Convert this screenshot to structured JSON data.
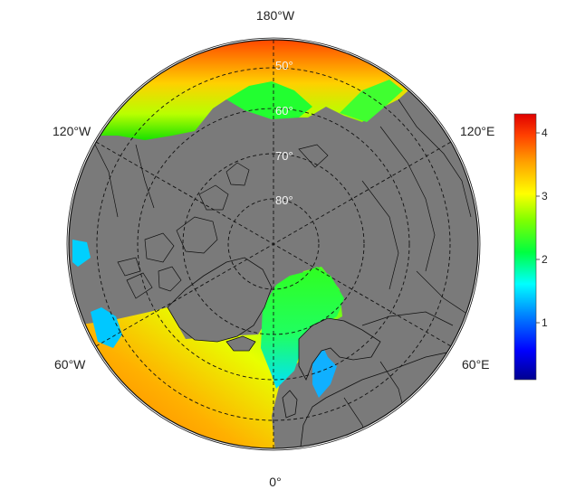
{
  "map": {
    "projection": "north-polar-stereographic",
    "land_color": "#7a7a7a",
    "border_color": "#000000",
    "graticule_style": "dashed",
    "longitude_labels": [
      "180°W",
      "120°W",
      "120°E",
      "60°W",
      "60°E",
      "0°"
    ],
    "latitude_labels": [
      "50°",
      "60°",
      "70°",
      "80°"
    ]
  },
  "colorbar": {
    "colormap": "jet",
    "range": [
      0.1,
      4.3
    ],
    "ticks": [
      "1",
      "2",
      "3",
      "4"
    ],
    "tick_values": [
      1,
      2,
      3,
      4
    ]
  }
}
